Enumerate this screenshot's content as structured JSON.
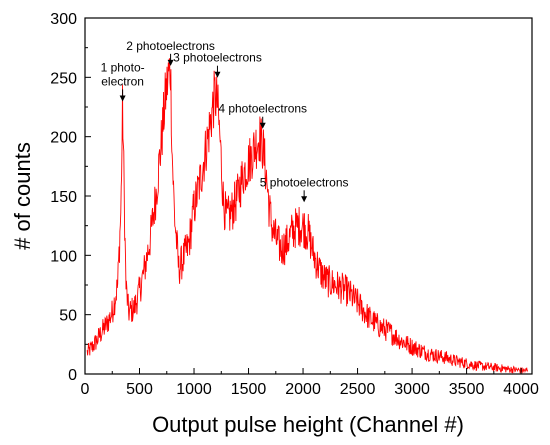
{
  "chart_data": {
    "type": "line",
    "title": "",
    "xlabel": "Output pulse height (Channel #)",
    "ylabel": "# of counts",
    "xlim": [
      0,
      4100
    ],
    "ylim": [
      0,
      300
    ],
    "x_ticks": [
      0,
      500,
      1000,
      1500,
      2000,
      2500,
      3000,
      3500,
      4000
    ],
    "y_ticks": [
      0,
      50,
      100,
      150,
      200,
      250,
      300
    ],
    "grid": false,
    "legend": "none",
    "color": "#ff0000",
    "series": [
      {
        "x": [
          20,
          60,
          100,
          150,
          200,
          250,
          300,
          330,
          345,
          360,
          375,
          400,
          450,
          500,
          550,
          600,
          650,
          700,
          740,
          770,
          785,
          800,
          820,
          860,
          900,
          950,
          1000,
          1050,
          1100,
          1150,
          1190,
          1215,
          1240,
          1270,
          1300,
          1350,
          1400,
          1450,
          1500,
          1550,
          1600,
          1630,
          1660,
          1690,
          1720,
          1760,
          1800,
          1850,
          1900,
          1950,
          2000,
          2050,
          2100,
          2150,
          2200,
          2250,
          2300,
          2400,
          2500,
          2600,
          2700,
          2800,
          2900,
          3000,
          3100,
          3200,
          3300,
          3400,
          3500,
          3600,
          3700,
          3800,
          3900,
          4000,
          4060
        ],
        "y": [
          18,
          22,
          27,
          35,
          42,
          52,
          75,
          140,
          228,
          150,
          75,
          52,
          55,
          70,
          90,
          115,
          150,
          195,
          235,
          255,
          258,
          185,
          135,
          88,
          97,
          108,
          140,
          160,
          185,
          212,
          235,
          228,
          195,
          145,
          130,
          138,
          150,
          168,
          178,
          190,
          200,
          192,
          170,
          140,
          122,
          112,
          105,
          110,
          120,
          125,
          125,
          118,
          100,
          88,
          80,
          77,
          75,
          70,
          60,
          48,
          40,
          35,
          28,
          23,
          19,
          16,
          14,
          11,
          9,
          7,
          6,
          5,
          4,
          3,
          3
        ]
      }
    ],
    "annotations": [
      {
        "lines": [
          "1 photo-",
          "electron"
        ],
        "x": 345,
        "y": 228
      },
      {
        "lines": [
          "2 photoelectrons"
        ],
        "x": 785,
        "y": 258
      },
      {
        "lines": [
          "3 photoelectrons"
        ],
        "x": 1215,
        "y": 248
      },
      {
        "lines": [
          "4 photoelectrons"
        ],
        "x": 1630,
        "y": 205
      },
      {
        "lines": [
          "5 photoelectrons"
        ],
        "x": 2010,
        "y": 143
      }
    ]
  }
}
